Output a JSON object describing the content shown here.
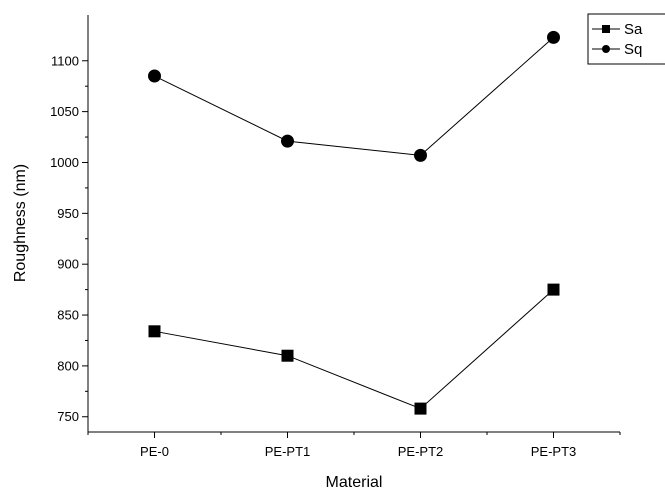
{
  "chart_data": {
    "type": "line",
    "title": "",
    "xlabel": "Material",
    "ylabel": "Roughness (nm)",
    "categories": [
      "PE-0",
      "PE-PT1",
      "PE-PT2",
      "PE-PT3"
    ],
    "ylim": [
      735,
      1145
    ],
    "yticks": [
      750,
      800,
      850,
      900,
      950,
      1000,
      1050,
      1100
    ],
    "grid": false,
    "legend_position": "top-right",
    "series": [
      {
        "name": "Sa",
        "marker": "square",
        "values": [
          834,
          810,
          758,
          875
        ]
      },
      {
        "name": "Sq",
        "marker": "circle",
        "values": [
          1085,
          1021,
          1007,
          1123
        ]
      }
    ]
  }
}
